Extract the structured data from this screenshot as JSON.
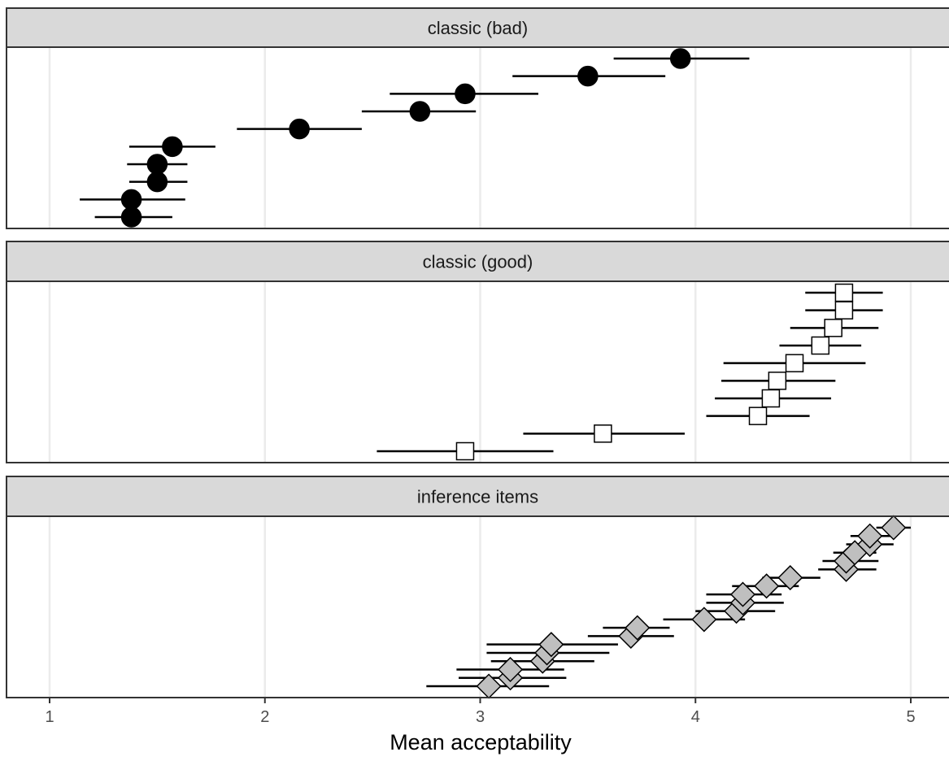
{
  "chart_data": {
    "type": "scatter",
    "xlabel": "Mean acceptability",
    "xlim": [
      0.8,
      5.2
    ],
    "xticks": [
      "1",
      "2",
      "3",
      "4",
      "5"
    ],
    "grid": true,
    "panels": [
      {
        "title": "classic (bad)",
        "marker": "circle",
        "fill": "#000000",
        "points": [
          {
            "mean": 1.38,
            "lo": 1.21,
            "hi": 1.57
          },
          {
            "mean": 1.38,
            "lo": 1.14,
            "hi": 1.63
          },
          {
            "mean": 1.5,
            "lo": 1.37,
            "hi": 1.64
          },
          {
            "mean": 1.5,
            "lo": 1.36,
            "hi": 1.64
          },
          {
            "mean": 1.57,
            "lo": 1.37,
            "hi": 1.77
          },
          {
            "mean": 2.16,
            "lo": 1.87,
            "hi": 2.45
          },
          {
            "mean": 2.72,
            "lo": 2.45,
            "hi": 2.98
          },
          {
            "mean": 2.93,
            "lo": 2.58,
            "hi": 3.27
          },
          {
            "mean": 3.5,
            "lo": 3.15,
            "hi": 3.86
          },
          {
            "mean": 3.93,
            "lo": 3.62,
            "hi": 4.25
          }
        ]
      },
      {
        "title": "classic (good)",
        "marker": "square",
        "fill": "#ffffff",
        "points": [
          {
            "mean": 2.93,
            "lo": 2.52,
            "hi": 3.34
          },
          {
            "mean": 3.57,
            "lo": 3.2,
            "hi": 3.95
          },
          {
            "mean": 4.29,
            "lo": 4.05,
            "hi": 4.53
          },
          {
            "mean": 4.35,
            "lo": 4.09,
            "hi": 4.63
          },
          {
            "mean": 4.38,
            "lo": 4.12,
            "hi": 4.65
          },
          {
            "mean": 4.46,
            "lo": 4.13,
            "hi": 4.79
          },
          {
            "mean": 4.58,
            "lo": 4.39,
            "hi": 4.77
          },
          {
            "mean": 4.64,
            "lo": 4.44,
            "hi": 4.85
          },
          {
            "mean": 4.69,
            "lo": 4.51,
            "hi": 4.87
          },
          {
            "mean": 4.69,
            "lo": 4.51,
            "hi": 4.87
          }
        ]
      },
      {
        "title": "inference items",
        "marker": "diamond",
        "fill": "#bfbfbf",
        "points": [
          {
            "mean": 3.04,
            "lo": 2.75,
            "hi": 3.32
          },
          {
            "mean": 3.14,
            "lo": 2.9,
            "hi": 3.4
          },
          {
            "mean": 3.14,
            "lo": 2.89,
            "hi": 3.39
          },
          {
            "mean": 3.29,
            "lo": 3.05,
            "hi": 3.53
          },
          {
            "mean": 3.31,
            "lo": 3.03,
            "hi": 3.6
          },
          {
            "mean": 3.33,
            "lo": 3.03,
            "hi": 3.64
          },
          {
            "mean": 3.7,
            "lo": 3.5,
            "hi": 3.9
          },
          {
            "mean": 3.73,
            "lo": 3.57,
            "hi": 3.88
          },
          {
            "mean": 4.04,
            "lo": 3.85,
            "hi": 4.23
          },
          {
            "mean": 4.19,
            "lo": 4.0,
            "hi": 4.37
          },
          {
            "mean": 4.22,
            "lo": 4.05,
            "hi": 4.41
          },
          {
            "mean": 4.22,
            "lo": 4.05,
            "hi": 4.4
          },
          {
            "mean": 4.33,
            "lo": 4.17,
            "hi": 4.48
          },
          {
            "mean": 4.44,
            "lo": 4.31,
            "hi": 4.58
          },
          {
            "mean": 4.7,
            "lo": 4.57,
            "hi": 4.84
          },
          {
            "mean": 4.7,
            "lo": 4.59,
            "hi": 4.85
          },
          {
            "mean": 4.74,
            "lo": 4.64,
            "hi": 4.84
          },
          {
            "mean": 4.81,
            "lo": 4.7,
            "hi": 4.92
          },
          {
            "mean": 4.81,
            "lo": 4.72,
            "hi": 4.92
          },
          {
            "mean": 4.92,
            "lo": 4.84,
            "hi": 5.0
          }
        ]
      }
    ]
  }
}
